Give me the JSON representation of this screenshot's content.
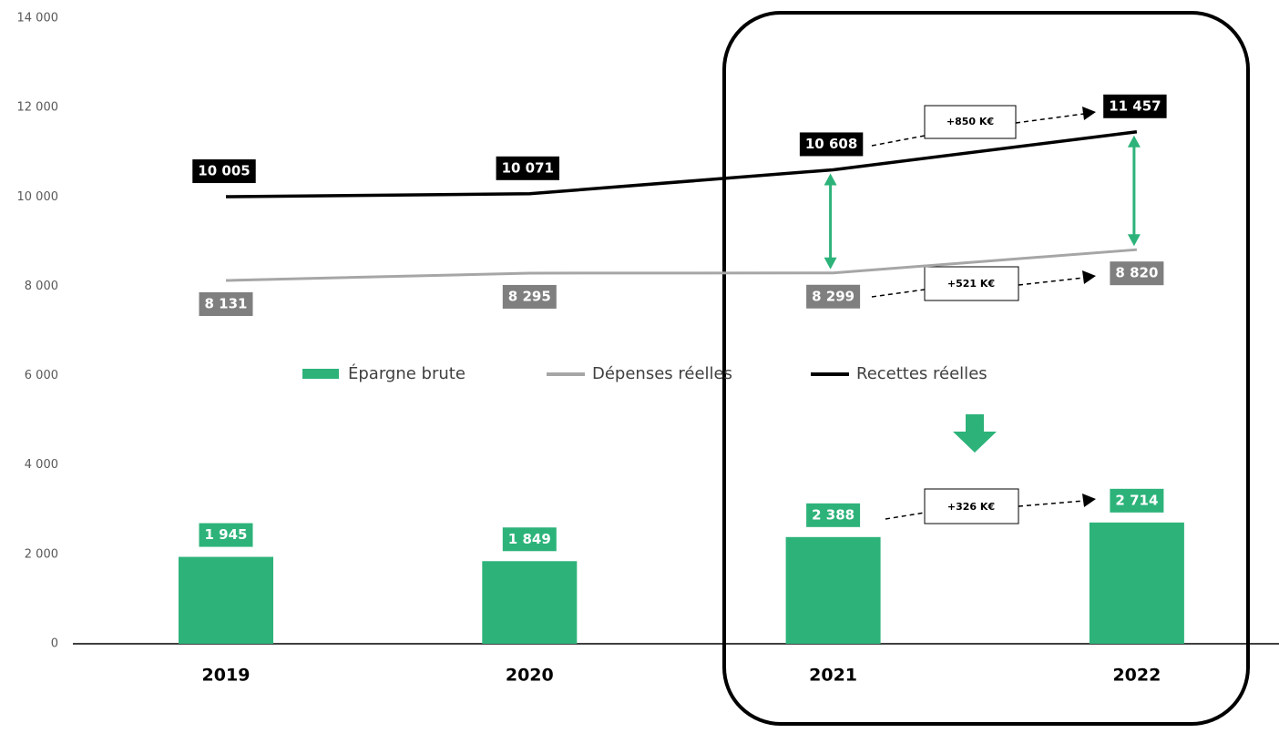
{
  "chart_data": {
    "type": "bar",
    "categories": [
      "2019",
      "2020",
      "2021",
      "2022"
    ],
    "series": [
      {
        "name": "Épargne brute",
        "type": "bar",
        "color": "#2db37a",
        "values": [
          1945,
          1849,
          2388,
          2714
        ],
        "value_labels": [
          "1 945",
          "1 849",
          "2 388",
          "2 714"
        ]
      },
      {
        "name": "Dépenses réelles",
        "type": "line",
        "color": "#a6a6a6",
        "label_color": "#7f7f7f",
        "values": [
          8131,
          8295,
          8299,
          8820
        ],
        "value_labels": [
          "8 131",
          "8 295",
          "8 299",
          "8 820"
        ]
      },
      {
        "name": "Recettes réelles",
        "type": "line",
        "color": "#000000",
        "label_color": "#000000",
        "values": [
          10005,
          10071,
          10608,
          11457
        ],
        "value_labels": [
          "10 005",
          "10 071",
          "10 608",
          "11 457"
        ]
      }
    ],
    "ylim": [
      0,
      14000
    ],
    "yticks": [
      0,
      {
        "value": 2000,
        "label": "2 000"
      },
      {
        "value": 4000,
        "label": "4 000"
      },
      {
        "value": 6000,
        "label": "6 000"
      },
      {
        "value": 8000,
        "label": "8 000"
      },
      {
        "value": 10000,
        "label": "10 000"
      },
      {
        "value": 12000,
        "label": "12 000"
      },
      {
        "value": 14000,
        "label": "14 000"
      }
    ],
    "annotations": [
      "+850 K€",
      "+521 K€",
      "+326 K€"
    ]
  }
}
